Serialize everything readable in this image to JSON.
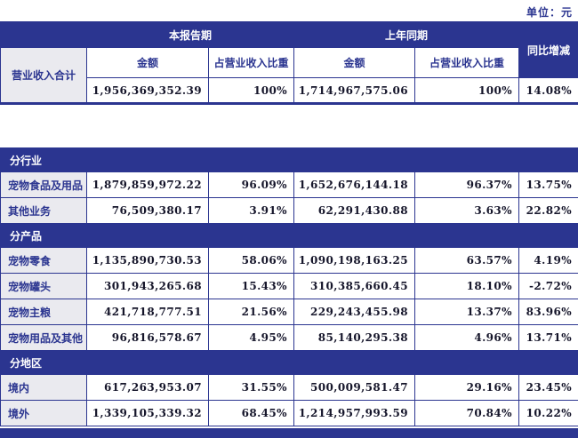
{
  "unit_label": "单位：元",
  "colors": {
    "accent_blue": "#2b3590",
    "label_background": "#eaeaef",
    "number_text": "#15152a",
    "header_text": "#ffffff"
  },
  "table1": {
    "header": {
      "current_period": "本报告期",
      "prior_period": "上年同期",
      "yoy_change": "同比增减"
    },
    "subheader": {
      "amount_current": "金额",
      "share_current": "占营业收入比重",
      "amount_prior": "金额",
      "share_prior": "占营业收入比重"
    },
    "total_row": {
      "label": "营业收入合计",
      "current_amount": "1,956,369,352.39",
      "current_share": "100%",
      "prior_amount": "1,714,967,575.06",
      "prior_share": "100%",
      "yoy": "14.08%"
    }
  },
  "table2": {
    "sections": [
      {
        "title": "分行业",
        "rows": [
          {
            "label": "宠物食品及用品",
            "current_amount": "1,879,859,972.22",
            "current_share": "96.09%",
            "prior_amount": "1,652,676,144.18",
            "prior_share": "96.37%",
            "yoy": "13.75%"
          },
          {
            "label": "其他业务",
            "current_amount": "76,509,380.17",
            "current_share": "3.91%",
            "prior_amount": "62,291,430.88",
            "prior_share": "3.63%",
            "yoy": "22.82%"
          }
        ]
      },
      {
        "title": "分产品",
        "rows": [
          {
            "label": "宠物零食",
            "current_amount": "1,135,890,730.53",
            "current_share": "58.06%",
            "prior_amount": "1,090,198,163.25",
            "prior_share": "63.57%",
            "yoy": "4.19%"
          },
          {
            "label": "宠物罐头",
            "current_amount": "301,943,265.68",
            "current_share": "15.43%",
            "prior_amount": "310,385,660.45",
            "prior_share": "18.10%",
            "yoy": "-2.72%"
          },
          {
            "label": "宠物主粮",
            "current_amount": "421,718,777.51",
            "current_share": "21.56%",
            "prior_amount": "229,243,455.98",
            "prior_share": "13.37%",
            "yoy": "83.96%"
          },
          {
            "label": "宠物用品及其他",
            "current_amount": "96,816,578.67",
            "current_share": "4.95%",
            "prior_amount": "85,140,295.38",
            "prior_share": "4.96%",
            "yoy": "13.71%"
          }
        ]
      },
      {
        "title": "分地区",
        "rows": [
          {
            "label": "境内",
            "current_amount": "617,263,953.07",
            "current_share": "31.55%",
            "prior_amount": "500,009,581.47",
            "prior_share": "29.16%",
            "yoy": "23.45%"
          },
          {
            "label": "境外",
            "current_amount": "1,339,105,339.32",
            "current_share": "68.45%",
            "prior_amount": "1,214,957,993.59",
            "prior_share": "70.84%",
            "yoy": "10.22%"
          }
        ]
      }
    ]
  }
}
